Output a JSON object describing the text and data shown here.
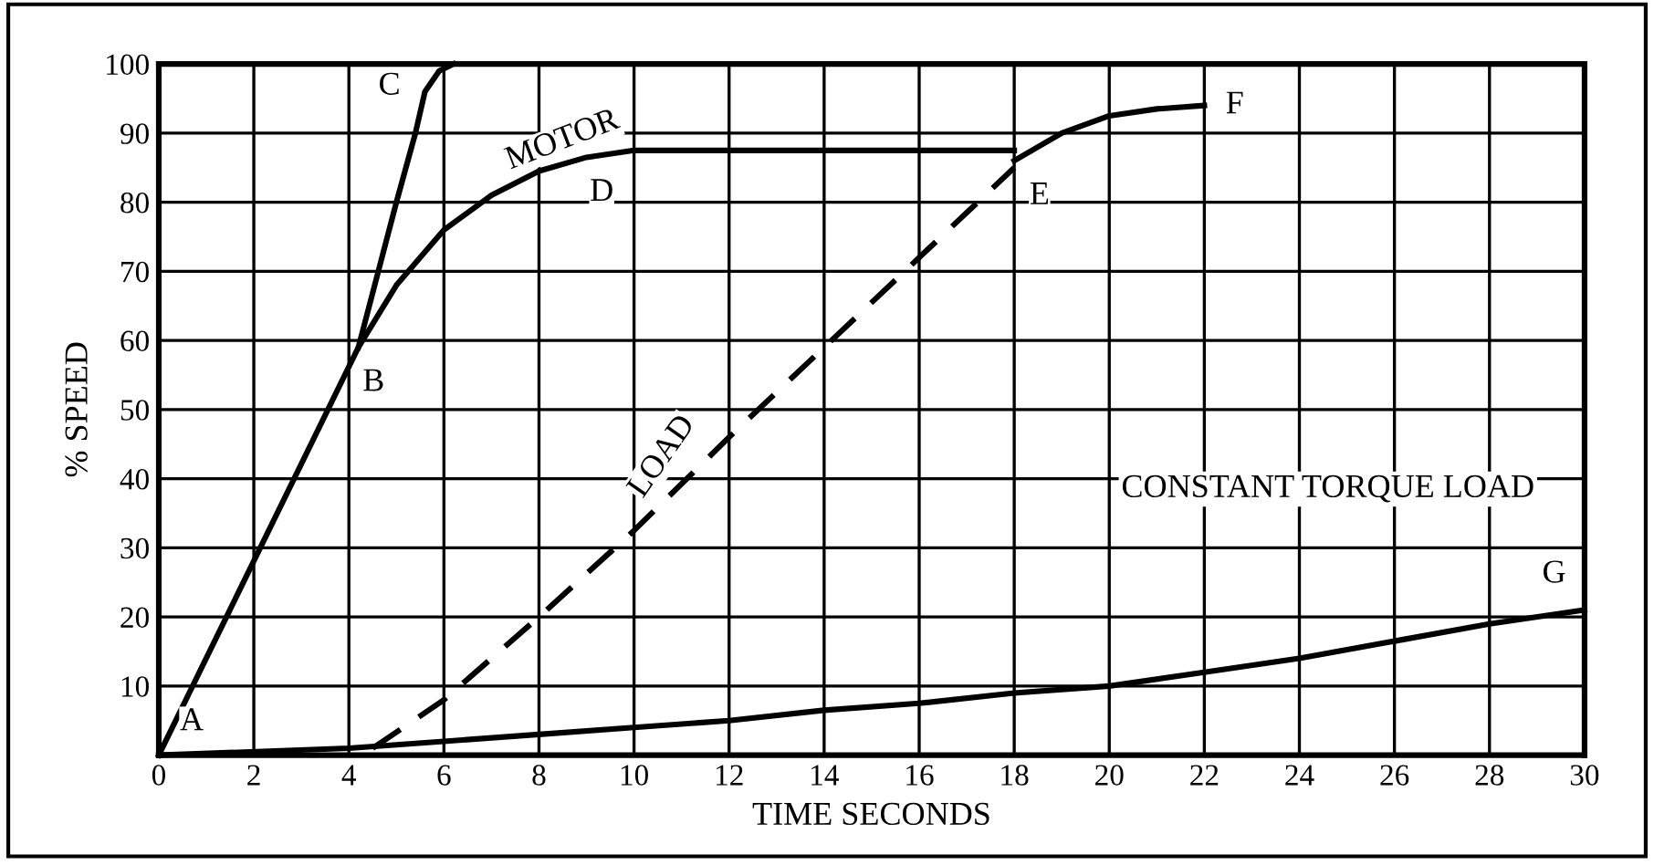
{
  "chart_data": {
    "type": "line",
    "xlabel": "TIME SECONDS",
    "ylabel": "% SPEED",
    "xlim": [
      0,
      30
    ],
    "ylim": [
      0,
      100
    ],
    "xticks": [
      0,
      2,
      4,
      6,
      8,
      10,
      12,
      14,
      16,
      18,
      20,
      22,
      24,
      26,
      28,
      30
    ],
    "yticks": [
      10,
      20,
      30,
      40,
      50,
      60,
      70,
      80,
      90,
      100
    ],
    "grid": true,
    "legend": false,
    "marker": "none",
    "series": [
      {
        "name": "MOTOR",
        "color": "#000000",
        "line_style": "solid",
        "x": [
          0,
          4.2,
          5,
          6,
          7,
          8,
          9,
          10,
          14,
          18
        ],
        "values": [
          0,
          59,
          68,
          76,
          81,
          84.5,
          86.5,
          87.5,
          87.5,
          87.5
        ]
      },
      {
        "color": "#000000",
        "line_style": "solid",
        "x": [
          4.2,
          5,
          5.4,
          5.6,
          5.9,
          6.2
        ],
        "values": [
          59,
          80,
          90,
          96,
          99,
          100
        ]
      },
      {
        "name": "LOAD",
        "color": "#000000",
        "line_style": "dashed",
        "x": [
          4.5,
          6,
          8,
          10,
          12,
          14,
          16,
          18
        ],
        "values": [
          1,
          8,
          20,
          32.5,
          46,
          59,
          72,
          85
        ]
      },
      {
        "color": "#000000",
        "line_style": "solid",
        "x": [
          18,
          19,
          20,
          21,
          22
        ],
        "values": [
          86,
          90,
          92.5,
          93.5,
          94
        ]
      },
      {
        "color": "#000000",
        "line_style": "solid",
        "x": [
          0,
          4,
          6,
          8,
          10,
          12,
          14,
          16,
          18,
          20,
          22,
          24,
          26,
          28,
          30
        ],
        "values": [
          0,
          1,
          2,
          3,
          4,
          5,
          6.5,
          7.5,
          9,
          10,
          12,
          14,
          16.5,
          19,
          21
        ]
      }
    ],
    "annotations": [
      {
        "text": "A",
        "x": 0,
        "y": 0
      },
      {
        "text": "B",
        "x": 4.2,
        "y": 59
      },
      {
        "text": "C",
        "x": 5.6,
        "y": 96
      },
      {
        "text": "D",
        "x": 9,
        "y": 86.5
      },
      {
        "text": "E",
        "x": 18,
        "y": 86
      },
      {
        "text": "F",
        "x": 22,
        "y": 94
      },
      {
        "text": "G",
        "x": 30,
        "y": 21
      },
      "CONSTANT TORQUE LOAD"
    ]
  }
}
